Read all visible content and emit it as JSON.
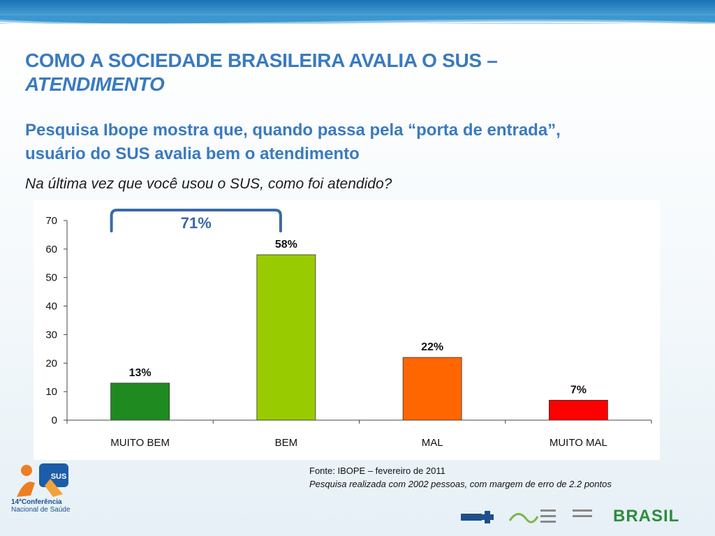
{
  "title": {
    "line1": "COMO A SOCIEDADE BRASILEIRA AVALIA O SUS –",
    "line2": "ATENDIMENTO"
  },
  "subtitle": "Pesquisa Ibope mostra que, quando passa pela “porta de entrada”, usuário do SUS avalia bem o atendimento",
  "question": "Na última vez que você usou o SUS, como foi atendido?",
  "bracket_label": "71%",
  "source": {
    "line1": "Fonte: IBOPE – fevereiro de 2011",
    "line2": "Pesquisa realizada com 2002 pessoas, com margem de erro de 2.2 pontos"
  },
  "logos": {
    "conference_line1": "14ªConferência",
    "conference_line2": "Nacional de Saúde",
    "brasil": "BRASIL"
  },
  "colors": {
    "title": "#3a7abf",
    "muito_bem": "#1f8a1f",
    "bem": "#99cc00",
    "mal": "#ff6600",
    "muito_mal": "#ff0000",
    "bracket": "#3a6aa8"
  },
  "chart_data": {
    "type": "bar",
    "categories": [
      "MUITO BEM",
      "BEM",
      "MAL",
      "MUITO MAL"
    ],
    "values": [
      13,
      58,
      22,
      7
    ],
    "data_labels": [
      "13%",
      "58%",
      "22%",
      "7%"
    ],
    "bar_colors": [
      "#1f8a1f",
      "#99cc00",
      "#ff6600",
      "#ff0000"
    ],
    "ylim": [
      0,
      70
    ],
    "yticks": [
      0,
      10,
      20,
      30,
      40,
      50,
      60,
      70
    ],
    "title": "",
    "xlabel": "",
    "ylabel": "",
    "grid": false,
    "legend": false
  }
}
